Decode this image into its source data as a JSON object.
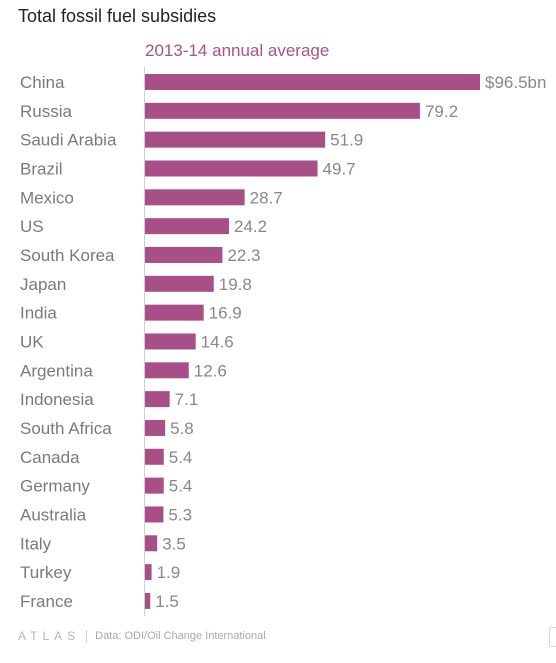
{
  "chart_data": {
    "type": "bar",
    "orientation": "horizontal",
    "title": "Total fossil fuel subsidies",
    "subtitle": "2013-14 annual average",
    "categories": [
      "China",
      "Russia",
      "Saudi Arabia",
      "Brazil",
      "Mexico",
      "US",
      "South Korea",
      "Japan",
      "India",
      "UK",
      "Argentina",
      "Indonesia",
      "South Africa",
      "Canada",
      "Germany",
      "Australia",
      "Italy",
      "Turkey",
      "France"
    ],
    "values": [
      96.5,
      79.2,
      51.9,
      49.7,
      28.7,
      24.2,
      22.3,
      19.8,
      16.9,
      14.6,
      12.6,
      7.1,
      5.8,
      5.4,
      5.4,
      5.3,
      3.5,
      1.9,
      1.5
    ],
    "value_labels": [
      "$96.5bn",
      "79.2",
      "51.9",
      "49.7",
      "28.7",
      "24.2",
      "22.3",
      "19.8",
      "16.9",
      "14.6",
      "12.6",
      "7.1",
      "5.8",
      "5.4",
      "5.4",
      "5.3",
      "3.5",
      "1.9",
      "1.5"
    ],
    "xlim": [
      0,
      96.5
    ],
    "grid": false,
    "bar_color": "#a94f88"
  },
  "footer": {
    "logo": "ATLAS",
    "source": "Data: ODI/Oil Change International"
  }
}
